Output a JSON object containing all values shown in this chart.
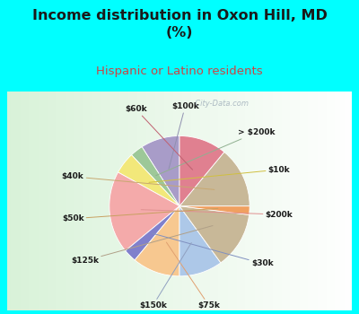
{
  "title": "Income distribution in Oxon Hill, MD\n(%)",
  "subtitle": "Hispanic or Latino residents",
  "background_color": "#00FFFF",
  "labels": [
    "$100k",
    "> $200k",
    "$10k",
    "$200k",
    "$30k",
    "$75k",
    "$150k",
    "$125k",
    "$50k",
    "$40k",
    "$60k"
  ],
  "values": [
    9,
    3,
    5,
    19,
    3,
    11,
    10,
    13,
    2,
    14,
    11
  ],
  "colors": [
    "#a89cc8",
    "#9dc898",
    "#f2e87a",
    "#f4aaaa",
    "#8080cc",
    "#f7c890",
    "#adc8e8",
    "#c8b898",
    "#f0a060",
    "#c8b898",
    "#e08090"
  ],
  "startangle": 90,
  "watermark": "  City-Data.com"
}
